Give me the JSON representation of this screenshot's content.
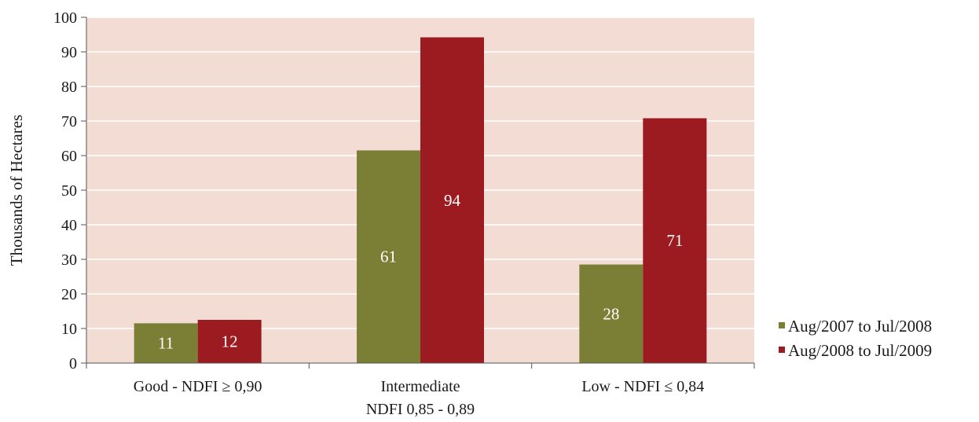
{
  "chart_data": {
    "type": "bar",
    "title": "",
    "xlabel": "",
    "ylabel": "Thousands of Hectares",
    "ylim": [
      0,
      100
    ],
    "ytick_step": 10,
    "yticks": [
      "0",
      "10",
      "20",
      "30",
      "40",
      "50",
      "60",
      "70",
      "80",
      "90",
      "100"
    ],
    "categories": [
      [
        "Good - NDFI ≥ 0,90"
      ],
      [
        "Intermediate",
        "NDFI 0,85 - 0,89"
      ],
      [
        "Low - NDFI ≤ 0,84"
      ]
    ],
    "series": [
      {
        "name": "Aug/2007 to Jul/2008",
        "color": "#7b7f35",
        "values": [
          11.5,
          61.5,
          28.5
        ],
        "labels": [
          "11",
          "61",
          "28"
        ]
      },
      {
        "name": "Aug/2008 to Jul/2009",
        "color": "#9b1b20",
        "values": [
          12.5,
          94.2,
          70.8
        ],
        "labels": [
          "12",
          "94",
          "71"
        ]
      }
    ],
    "plot_background": "#f2dcd4",
    "grid": true,
    "legend": "right"
  }
}
